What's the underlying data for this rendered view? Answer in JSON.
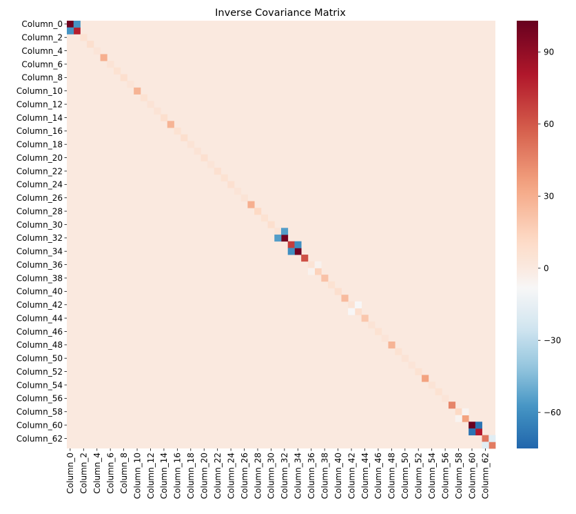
{
  "chart_data": {
    "type": "heatmap",
    "title": "Inverse Covariance Matrix",
    "xlabel": "",
    "ylabel": "",
    "size": 64,
    "row_labels": [
      "Column_0",
      "Column_2",
      "Column_4",
      "Column_6",
      "Column_8",
      "Column_10",
      "Column_12",
      "Column_14",
      "Column_16",
      "Column_18",
      "Column_20",
      "Column_22",
      "Column_24",
      "Column_26",
      "Column_28",
      "Column_30",
      "Column_32",
      "Column_34",
      "Column_36",
      "Column_38",
      "Column_40",
      "Column_42",
      "Column_44",
      "Column_46",
      "Column_48",
      "Column_50",
      "Column_52",
      "Column_54",
      "Column_56",
      "Column_58",
      "Column_60",
      "Column_62"
    ],
    "col_labels": [
      "Column_0",
      "Column_2",
      "Column_4",
      "Column_6",
      "Column_8",
      "Column_10",
      "Column_12",
      "Column_14",
      "Column_16",
      "Column_18",
      "Column_20",
      "Column_22",
      "Column_24",
      "Column_26",
      "Column_28",
      "Column_30",
      "Column_32",
      "Column_34",
      "Column_36",
      "Column_38",
      "Column_40",
      "Column_42",
      "Column_44",
      "Column_46",
      "Column_48",
      "Column_50",
      "Column_52",
      "Column_54",
      "Column_56",
      "Column_58",
      "Column_60",
      "Column_62"
    ],
    "labeled_index_step": 2,
    "background_value": 0,
    "diagonal": [
      100,
      78,
      6,
      8,
      4,
      30,
      5,
      6,
      8,
      4,
      28,
      6,
      5,
      5,
      8,
      28,
      6,
      8,
      5,
      5,
      7,
      4,
      7,
      6,
      7,
      4,
      5,
      30,
      12,
      6,
      8,
      5,
      100,
      68,
      100,
      62,
      5,
      15,
      22,
      6,
      8,
      25,
      5,
      8,
      20,
      5,
      6,
      4,
      28,
      6,
      5,
      4,
      6,
      35,
      5,
      6,
      4,
      45,
      12,
      35,
      102,
      80,
      50,
      48
    ],
    "off_diagonal": [
      {
        "row": 0,
        "col": 1,
        "value": -58
      },
      {
        "row": 31,
        "col": 32,
        "value": -55
      },
      {
        "row": 33,
        "col": 34,
        "value": -60
      },
      {
        "row": 36,
        "col": 37,
        "value": -5
      },
      {
        "row": 42,
        "col": 43,
        "value": -8
      },
      {
        "row": 58,
        "col": 59,
        "value": -6
      },
      {
        "row": 60,
        "col": 61,
        "value": -70
      },
      {
        "row": 62,
        "col": 63,
        "value": -18
      }
    ],
    "colorbar": {
      "min": -75,
      "max": 103,
      "ticks": [
        -60,
        -30,
        0,
        30,
        60,
        90
      ],
      "tick_labels": [
        "−60",
        "−30",
        "0",
        "30",
        "60",
        "90"
      ],
      "colormap": "RdBu_r",
      "colors": [
        "#2166ac",
        "#4393c3",
        "#92c5de",
        "#d1e5f0",
        "#f7f7f7",
        "#fddbc7",
        "#f4a582",
        "#d6604d",
        "#b2182b",
        "#67001f"
      ]
    },
    "grid": false,
    "legend": "colorbar-right"
  }
}
